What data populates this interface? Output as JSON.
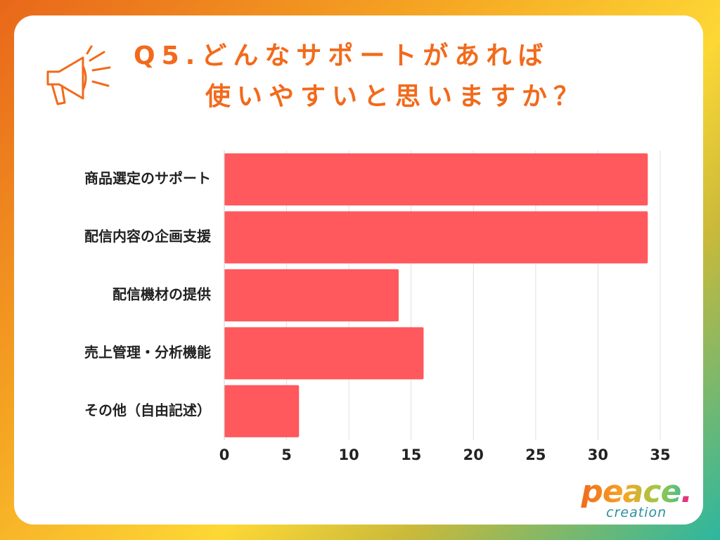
{
  "title": {
    "line1": "Q5.どんなサポートがあれば",
    "line2": "使いやすいと思いますか？"
  },
  "icons": {
    "megaphone": "megaphone-icon"
  },
  "colors": {
    "title": "#f26a1b",
    "bar": "#ff585d",
    "grid": "#e0e0e0",
    "background_gradient": [
      "#e8671a",
      "#fdd835",
      "#2bb7a0"
    ]
  },
  "chart_data": {
    "type": "bar",
    "orientation": "horizontal",
    "categories": [
      "商品選定のサポート",
      "配信内容の企画支援",
      "配信機材の提供",
      "売上管理・分析機能",
      "その他（自由記述）"
    ],
    "values": [
      34,
      34,
      14,
      16,
      6
    ],
    "xticks": [
      0,
      5,
      10,
      15,
      20,
      25,
      30,
      35
    ],
    "xlim": [
      0,
      35
    ],
    "grid": "vertical",
    "xlabel": "",
    "ylabel": ""
  },
  "logo": {
    "word": "peace",
    "dot": ".",
    "sub": "creation"
  }
}
